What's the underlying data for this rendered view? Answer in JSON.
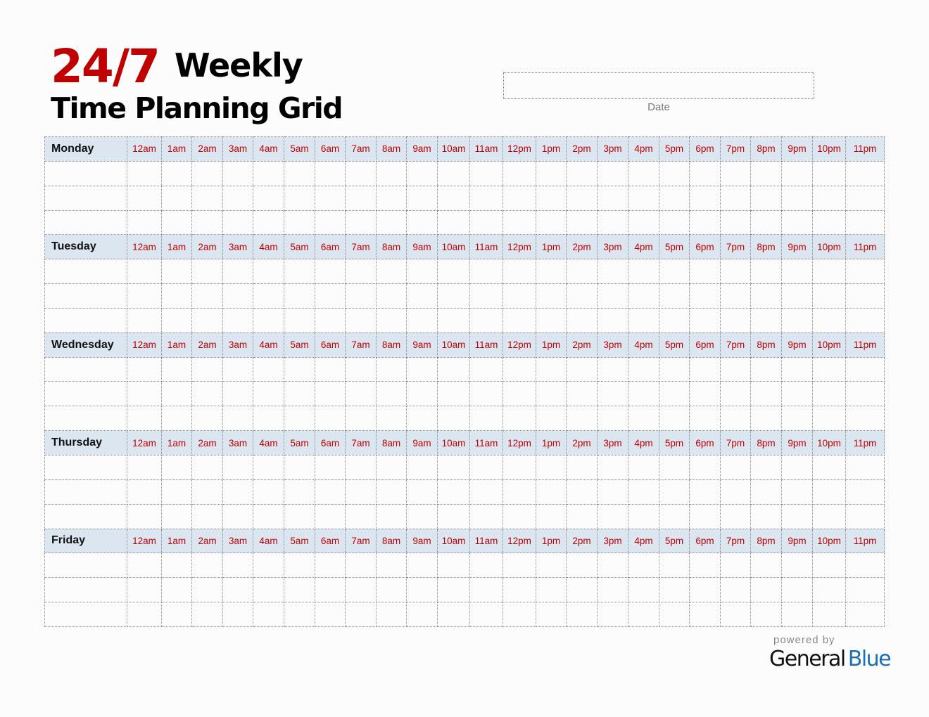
{
  "title": {
    "part1": "24/7",
    "part2": "Weekly",
    "line2": "Time Planning Grid"
  },
  "date_label": "Date",
  "hours": [
    "12am",
    "1am",
    "2am",
    "3am",
    "4am",
    "5am",
    "6am",
    "7am",
    "8am",
    "9am",
    "10am",
    "11am",
    "12pm",
    "1pm",
    "2pm",
    "3pm",
    "4pm",
    "5pm",
    "6pm",
    "7pm",
    "8pm",
    "9pm",
    "10pm",
    "11pm"
  ],
  "days": [
    "Monday",
    "Tuesday",
    "Wednesday",
    "Thursday",
    "Friday"
  ],
  "footer": {
    "powered_by": "powered by",
    "brand_general": "General",
    "brand_blue": "Blue"
  },
  "colors": {
    "accent": "#c00000",
    "header_bg": "#dce6f1",
    "brand_blue": "#1a6fb5"
  }
}
